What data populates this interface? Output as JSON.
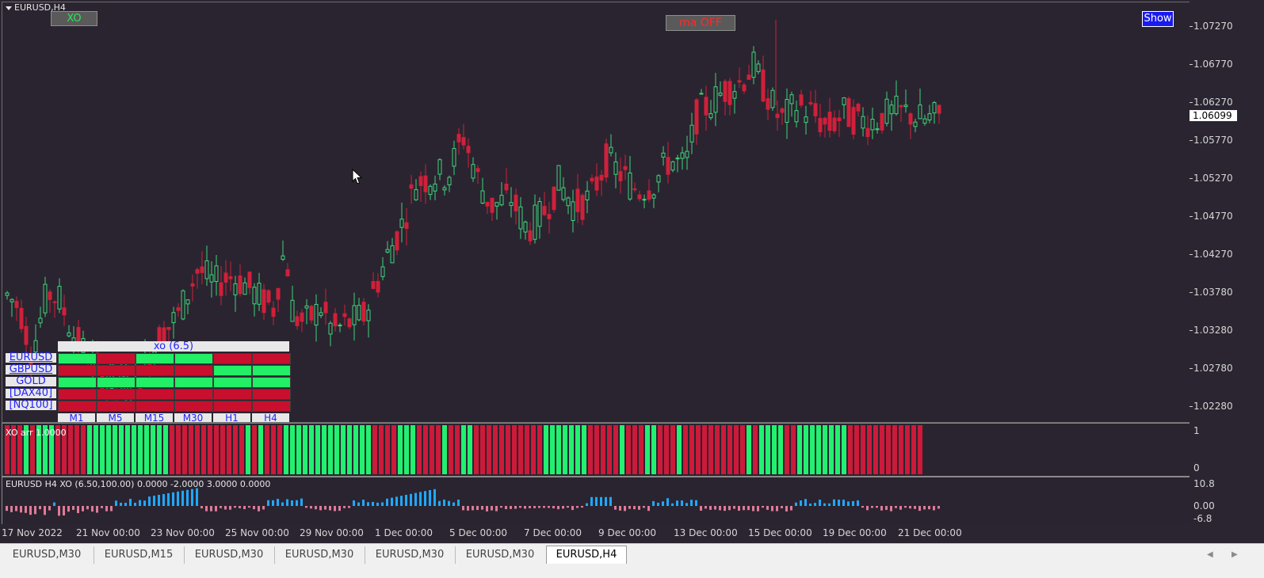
{
  "chart": {
    "symbol_title": "EURUSD,H4",
    "xo_button": "XO",
    "ma_button": "ma OFF",
    "show_button": "Show",
    "current_price": "1.06099",
    "price_axis": [
      "1.07270",
      "1.06770",
      "1.06270",
      "1.05770",
      "1.05270",
      "1.04770",
      "1.04270",
      "1.03780",
      "1.03280",
      "1.02780",
      "1.02280"
    ],
    "colors": {
      "bull": "#00e676",
      "bear": "#c8102e",
      "background": "#2a2530"
    }
  },
  "dashboard": {
    "title": "xo (6.5)",
    "symbols": [
      "EURUSD",
      "GBPUSD",
      "GOLD",
      "[DAX40]",
      "[NQ100]"
    ],
    "timeframes": [
      "M1",
      "M5",
      "M15",
      "M30",
      "H1",
      "H4"
    ],
    "states": [
      [
        "G",
        "R",
        "G",
        "G",
        "R",
        "R"
      ],
      [
        "R",
        "R",
        "R",
        "R",
        "G",
        "G"
      ],
      [
        "G",
        "G",
        "G",
        "G",
        "G",
        "G"
      ],
      [
        "R",
        "R",
        "R",
        "R",
        "R",
        "R"
      ],
      [
        "R",
        "R",
        "R",
        "R",
        "R",
        "R"
      ]
    ]
  },
  "xo_pane": {
    "label": "XO arr 1.0000",
    "axis": [
      "1",
      "0"
    ],
    "bars": "RRRGRGGGRRRRRGGGGGGGGGGGGGRRRRRRRRRRRRGRGRRRGGGGGGGGGGGGGGRRRRGGGRRRRGRRGGRRRRRRRRRRRGGGGGGGRRRRRGRRRGGRRRGRRRRRRRRRRGRGGGGRRGGGGGGGGRRRRRRRRRRRR"
  },
  "osc_pane": {
    "label": "EURUSD H4 XO (6.50,100.00) 0.0000 -2.0000 3.0000 0.0000",
    "axis": [
      "10.8",
      "0.00",
      "-6.8"
    ]
  },
  "time_axis": [
    "17 Nov 2022",
    "21 Nov 00:00",
    "23 Nov 00:00",
    "25 Nov 00:00",
    "29 Nov 00:00",
    "1 Dec 00:00",
    "5 Dec 00:00",
    "7 Dec 00:00",
    "9 Dec 00:00",
    "13 Dec 00:00",
    "15 Dec 00:00",
    "19 Dec 00:00",
    "21 Dec 00:00"
  ],
  "tabs": [
    "EURUSD,M30",
    "EURUSD,M15",
    "EURUSD,M30",
    "EURUSD,M30",
    "EURUSD,M30",
    "EURUSD,M30",
    "EURUSD,H4"
  ],
  "active_tab": "EURUSD,H4"
}
